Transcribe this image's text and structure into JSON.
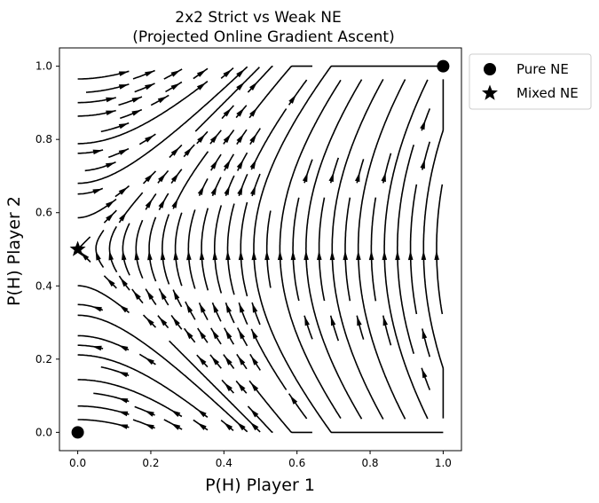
{
  "chart_data": {
    "type": "streamplot",
    "title": "2x2 Strict vs Weak NE",
    "subtitle": "(Projected Online Gradient Ascent)",
    "xlabel": "P(H) Player 1",
    "ylabel": "P(H) Player 2",
    "xlim": [
      -0.05,
      1.05
    ],
    "ylim": [
      -0.05,
      1.05
    ],
    "xticks": [
      "0.0",
      "0.2",
      "0.4",
      "0.6",
      "0.8",
      "1.0"
    ],
    "yticks": [
      "0.0",
      "0.2",
      "0.4",
      "0.6",
      "0.8",
      "1.0"
    ],
    "field": "dx/dt = y - 0.5, dy/dt = x (projected onto [0,1]^2)",
    "points": [
      {
        "label": "Pure NE",
        "marker": "circle",
        "coords": [
          [
            0,
            0
          ],
          [
            1,
            1
          ]
        ]
      },
      {
        "label": "Mixed NE",
        "marker": "star",
        "coords": [
          [
            0,
            0.5
          ]
        ]
      }
    ],
    "legend": {
      "position": "outside-top-right",
      "entries": [
        "Pure NE",
        "Mixed NE"
      ]
    },
    "grid": false,
    "line_color": "#000000"
  }
}
